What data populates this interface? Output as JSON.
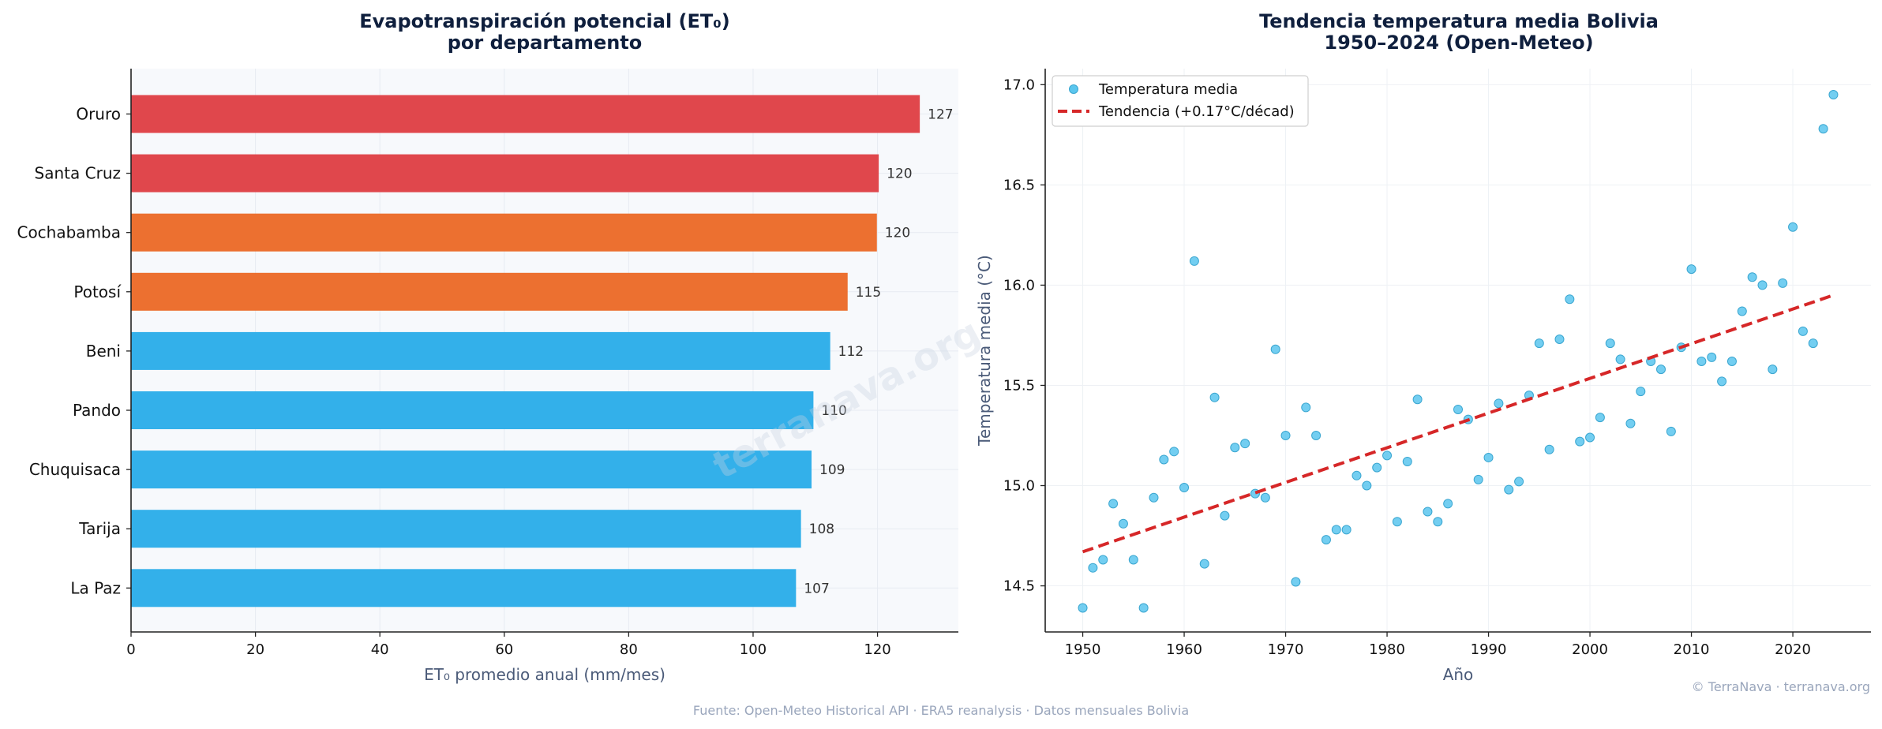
{
  "footer": {
    "source": "Fuente: Open-Meteo Historical API · ERA5 reanalysis · Datos mensuales Bolivia",
    "copyright": "© TerraNava · terranava.org",
    "watermark": "terranava.org"
  },
  "chart_data": [
    {
      "type": "bar",
      "orientation": "horizontal",
      "title": "Evapotranspiración potencial (ET₀)",
      "subtitle": "por departamento",
      "xlabel": "ET₀ promedio anual (mm/mes)",
      "ylabel": "",
      "xlim": [
        0,
        133
      ],
      "xticks": [
        0,
        20,
        40,
        60,
        80,
        100,
        120
      ],
      "grid": true,
      "categories": [
        "Oruro",
        "Santa Cruz",
        "Cochabamba",
        "Potosí",
        "Beni",
        "Pando",
        "Chuquisaca",
        "Tarija",
        "La Paz"
      ],
      "values": [
        126.8,
        120.2,
        119.9,
        115.2,
        112.4,
        109.7,
        109.4,
        107.7,
        106.9
      ],
      "value_labels": [
        "127",
        "120",
        "120",
        "115",
        "112",
        "110",
        "109",
        "108",
        "107"
      ],
      "bar_colors": [
        "#e0474c",
        "#e0474c",
        "#ec7030",
        "#ec7030",
        "#33b0ea",
        "#33b0ea",
        "#33b0ea",
        "#33b0ea",
        "#33b0ea"
      ]
    },
    {
      "type": "scatter",
      "title": "Tendencia temperatura media Bolivia",
      "subtitle": "1950–2024 (Open-Meteo)",
      "xlabel": "Año",
      "ylabel": "Temperatura media (°C)",
      "xlim": [
        1946.3,
        2027.7
      ],
      "ylim": [
        14.27,
        17.08
      ],
      "xticks": [
        1950,
        1960,
        1970,
        1980,
        1990,
        2000,
        2010,
        2020
      ],
      "yticks": [
        "14.5",
        "15.0",
        "15.5",
        "16.0",
        "16.5",
        "17.0"
      ],
      "grid": true,
      "legend_position": "top-left",
      "legend": [
        "Temperatura media",
        "Tendencia (+0.17°C/décad)"
      ],
      "point_color": "#5bc6ee",
      "trend_color": "#d62728",
      "x": [
        1950,
        1951,
        1952,
        1953,
        1954,
        1955,
        1956,
        1957,
        1958,
        1959,
        1960,
        1961,
        1962,
        1963,
        1964,
        1965,
        1966,
        1967,
        1968,
        1969,
        1970,
        1971,
        1972,
        1973,
        1974,
        1975,
        1976,
        1977,
        1978,
        1979,
        1980,
        1981,
        1982,
        1983,
        1984,
        1985,
        1986,
        1987,
        1988,
        1989,
        1990,
        1991,
        1992,
        1993,
        1994,
        1995,
        1996,
        1997,
        1998,
        1999,
        2000,
        2001,
        2002,
        2003,
        2004,
        2005,
        2006,
        2007,
        2008,
        2009,
        2010,
        2011,
        2012,
        2013,
        2014,
        2015,
        2016,
        2017,
        2018,
        2019,
        2020,
        2021,
        2022,
        2023,
        2024
      ],
      "y": [
        14.39,
        14.59,
        14.63,
        14.91,
        14.81,
        14.63,
        14.39,
        14.94,
        15.13,
        15.17,
        14.99,
        16.12,
        14.61,
        15.44,
        14.85,
        15.19,
        15.21,
        14.96,
        14.94,
        15.68,
        15.25,
        14.52,
        15.39,
        15.25,
        14.73,
        14.78,
        14.78,
        15.05,
        15.0,
        15.09,
        15.15,
        14.82,
        15.12,
        15.43,
        14.87,
        14.82,
        14.91,
        15.38,
        15.33,
        15.03,
        15.14,
        15.41,
        14.98,
        15.02,
        15.45,
        15.71,
        15.18,
        15.73,
        15.93,
        15.22,
        15.24,
        15.34,
        15.71,
        15.63,
        15.31,
        15.47,
        15.62,
        15.58,
        15.27,
        15.69,
        16.08,
        15.62,
        15.64,
        15.52,
        15.62,
        15.87,
        16.04,
        16.0,
        15.58,
        16.01,
        16.29,
        15.77,
        15.71,
        16.78,
        16.95
      ],
      "trend": {
        "x": [
          1950,
          2024
        ],
        "y": [
          14.67,
          15.95
        ]
      }
    }
  ]
}
